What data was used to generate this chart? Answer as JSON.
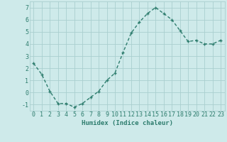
{
  "x": [
    0,
    1,
    2,
    3,
    4,
    5,
    6,
    7,
    8,
    9,
    10,
    11,
    12,
    13,
    14,
    15,
    16,
    17,
    18,
    19,
    20,
    21,
    22,
    23
  ],
  "y": [
    2.4,
    1.5,
    0.1,
    -0.9,
    -0.9,
    -1.2,
    -0.9,
    -0.4,
    0.1,
    1.0,
    1.6,
    3.3,
    4.9,
    5.8,
    6.5,
    7.0,
    6.5,
    6.0,
    5.1,
    4.2,
    4.3,
    4.0,
    4.0,
    4.3
  ],
  "line_color": "#2e7d6e",
  "marker": "+",
  "marker_size": 3.5,
  "marker_lw": 1.0,
  "background_color": "#ceeaea",
  "grid_color": "#aacfcf",
  "xlabel": "Humidex (Indice chaleur)",
  "ylim": [
    -1.5,
    7.5
  ],
  "xlim": [
    -0.5,
    23.5
  ],
  "yticks": [
    -1,
    0,
    1,
    2,
    3,
    4,
    5,
    6,
    7
  ],
  "xticks": [
    0,
    1,
    2,
    3,
    4,
    5,
    6,
    7,
    8,
    9,
    10,
    11,
    12,
    13,
    14,
    15,
    16,
    17,
    18,
    19,
    20,
    21,
    22,
    23
  ],
  "xlabel_fontsize": 6.5,
  "tick_fontsize": 6.0,
  "line_width": 1.0
}
